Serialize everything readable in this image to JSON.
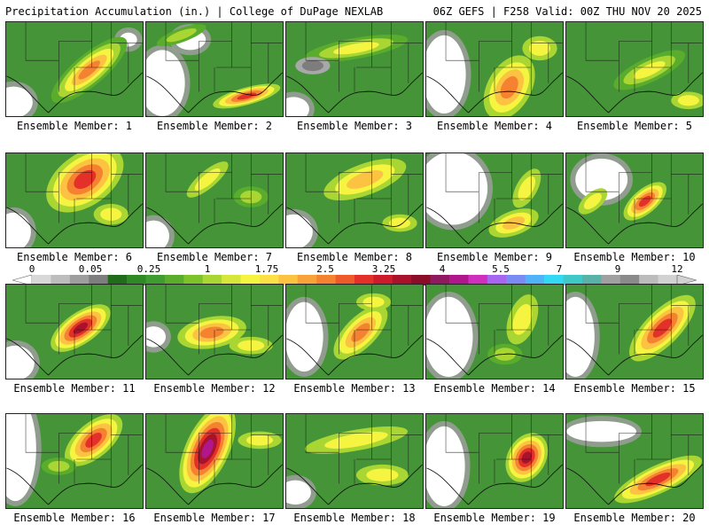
{
  "header": {
    "title": "Precipitation Accumulation (in.) | College of DuPage NEXLAB",
    "run_info": "06Z GEFS | F258 Valid: 00Z THU NOV 20 2025"
  },
  "colorbar": {
    "tick_labels": [
      "0",
      "0.05",
      "0.25",
      "1",
      "1.75",
      "2.5",
      "3.25",
      "4",
      "5.5",
      "7",
      "9",
      "12"
    ],
    "colors": [
      "#d8d8d8",
      "#bdbdbd",
      "#9e9e9e",
      "#7e7e7e",
      "#1f6d1b",
      "#2f8a26",
      "#3f9c30",
      "#5aad2c",
      "#7cc22a",
      "#a9d632",
      "#d6e63a",
      "#f4f441",
      "#fde046",
      "#fbc341",
      "#f8a23a",
      "#f58231",
      "#ef5a2b",
      "#e3312a",
      "#cc1b2b",
      "#a8132b",
      "#8b0d27",
      "#901a60",
      "#b0178c",
      "#cf2fbd",
      "#a666f0",
      "#7b8bf4",
      "#52b2f7",
      "#33d8f5",
      "#3ec8c8",
      "#58b2a8",
      "#a0a0a0",
      "#8a8a8a",
      "#bcbcbc",
      "#d2d2d2"
    ],
    "accent_land": "#4a9a3c",
    "accent_empty": "#ffffff"
  },
  "members": [
    {
      "label": "Ensemble Member: 1"
    },
    {
      "label": "Ensemble Member: 2"
    },
    {
      "label": "Ensemble Member: 3"
    },
    {
      "label": "Ensemble Member: 4"
    },
    {
      "label": "Ensemble Member: 5"
    },
    {
      "label": "Ensemble Member: 6"
    },
    {
      "label": "Ensemble Member: 7"
    },
    {
      "label": "Ensemble Member: 8"
    },
    {
      "label": "Ensemble Member: 9"
    },
    {
      "label": "Ensemble Member: 10"
    },
    {
      "label": "Ensemble Member: 11"
    },
    {
      "label": "Ensemble Member: 12"
    },
    {
      "label": "Ensemble Member: 13"
    },
    {
      "label": "Ensemble Member: 14"
    },
    {
      "label": "Ensemble Member: 15"
    },
    {
      "label": "Ensemble Member: 16"
    },
    {
      "label": "Ensemble Member: 17"
    },
    {
      "label": "Ensemble Member: 18"
    },
    {
      "label": "Ensemble Member: 19"
    },
    {
      "label": "Ensemble Member: 20"
    }
  ]
}
